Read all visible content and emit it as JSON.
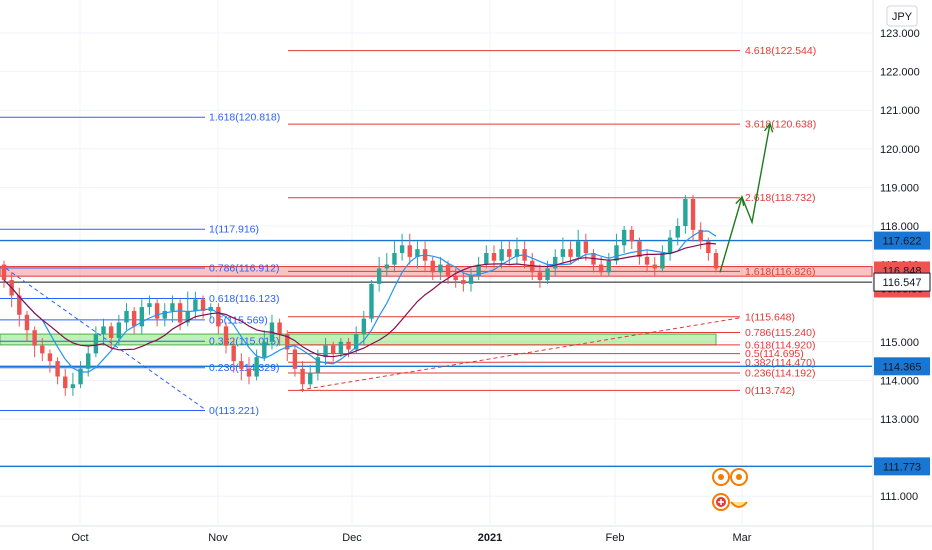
{
  "currency_label": "JPY",
  "colors": {
    "grid": "#f0f3fa",
    "up": "#26a69a",
    "down": "#ef5350",
    "blue_fib": "#2962ff",
    "red_fib": "#e53935",
    "ma_blue": "#2196f3",
    "ma_maroon": "#880e4f",
    "arrow": "#1b7a1b",
    "badge_blue": "#1976d2",
    "badge_dark": "#131722"
  },
  "chart_data": {
    "type": "candlestick",
    "y_axis": {
      "ticks": [
        "123.000",
        "122.000",
        "121.000",
        "120.000",
        "119.000",
        "118.000",
        "117.000",
        "115.000",
        "114.000",
        "113.000",
        "111.000"
      ],
      "range": [
        110.0,
        123.5
      ]
    },
    "x_axis": {
      "ticks": [
        "Oct",
        "Nov",
        "Dec",
        "2021",
        "Feb",
        "Mar"
      ]
    },
    "price_badges": [
      {
        "text": "117.622",
        "value": 117.622,
        "style": "blue"
      },
      {
        "text": "116.848",
        "value": 116.848,
        "style": "red"
      },
      {
        "text": "06:50:39",
        "value": 116.848,
        "style": "red",
        "offset": 1
      },
      {
        "text": "116.547",
        "value": 116.547,
        "style": "plain"
      },
      {
        "text": "114.365",
        "value": 114.365,
        "style": "blue"
      },
      {
        "text": "111.773",
        "value": 111.773,
        "style": "blue"
      }
    ],
    "horizontal_lines": [
      {
        "value": 117.622,
        "color": "blue"
      },
      {
        "value": 116.547,
        "color": "dark"
      },
      {
        "value": 114.365,
        "color": "blue"
      },
      {
        "value": 111.773,
        "color": "blue"
      }
    ],
    "blue_fib": [
      {
        "label": "1.618(120.818)",
        "value": 120.818
      },
      {
        "label": "1(117.916)",
        "value": 117.916
      },
      {
        "label": "0.786(116.912)",
        "value": 116.912
      },
      {
        "label": "0.618(116.123)",
        "value": 116.123
      },
      {
        "label": "0.5(115.569)",
        "value": 115.569
      },
      {
        "label": "0.382(115.015)",
        "value": 115.015
      },
      {
        "label": "0.236(114.329)",
        "value": 114.329
      },
      {
        "label": "0(113.221)",
        "value": 113.221
      }
    ],
    "red_fib_upper": [
      {
        "label": "4.618(122.544)",
        "value": 122.544
      },
      {
        "label": "3.618(120.638)",
        "value": 120.638
      },
      {
        "label": "2.618(118.732)",
        "value": 118.732
      },
      {
        "label": "1.618(116.826)",
        "value": 116.826
      }
    ],
    "red_fib_lower": [
      {
        "label": "1(115.648)",
        "value": 115.648
      },
      {
        "label": "0.786(115.240)",
        "value": 115.24
      },
      {
        "label": "0.618(114.920)",
        "value": 114.92
      },
      {
        "label": "0.5(114.695)",
        "value": 114.695
      },
      {
        "label": "0.382(114.470)",
        "value": 114.47
      },
      {
        "label": "0.236(114.192)",
        "value": 114.192
      },
      {
        "label": "0(113.742)",
        "value": 113.742
      }
    ],
    "zones": [
      {
        "name": "resistance-zone",
        "from": 116.7,
        "to": 116.95,
        "color": "red"
      },
      {
        "name": "support-zone",
        "from": 114.92,
        "to": 115.2,
        "color": "green"
      }
    ],
    "candles": [
      [
        117.0,
        116.6,
        117.1,
        116.4
      ],
      [
        116.6,
        116.2,
        116.8,
        115.9
      ],
      [
        116.2,
        115.7,
        116.4,
        115.4
      ],
      [
        115.7,
        115.3,
        115.8,
        115.0
      ],
      [
        115.3,
        114.9,
        115.4,
        114.6
      ],
      [
        114.9,
        114.7,
        115.1,
        114.5
      ],
      [
        114.7,
        114.5,
        114.8,
        114.2
      ],
      [
        114.5,
        114.1,
        114.6,
        113.9
      ],
      [
        114.1,
        113.8,
        114.3,
        113.6
      ],
      [
        113.8,
        113.9,
        114.2,
        113.6
      ],
      [
        113.9,
        114.3,
        114.5,
        113.8
      ],
      [
        114.3,
        114.7,
        114.9,
        114.1
      ],
      [
        114.7,
        115.2,
        115.4,
        114.6
      ],
      [
        115.2,
        115.4,
        115.6,
        114.9
      ],
      [
        115.4,
        115.1,
        115.5,
        114.8
      ],
      [
        115.1,
        115.5,
        115.7,
        114.9
      ],
      [
        115.5,
        115.8,
        116.0,
        115.3
      ],
      [
        115.8,
        115.4,
        115.9,
        115.2
      ],
      [
        115.4,
        115.9,
        116.1,
        115.2
      ],
      [
        115.9,
        116.0,
        116.2,
        115.7
      ],
      [
        116.0,
        115.6,
        116.1,
        115.4
      ],
      [
        115.6,
        115.8,
        116.0,
        115.4
      ],
      [
        115.8,
        116.0,
        116.2,
        115.5
      ],
      [
        116.0,
        115.5,
        116.1,
        115.3
      ],
      [
        115.5,
        115.8,
        116.3,
        115.4
      ],
      [
        115.8,
        116.1,
        116.3,
        115.6
      ],
      [
        116.1,
        115.8,
        116.2,
        115.6
      ],
      [
        115.8,
        115.9,
        116.0,
        115.6
      ],
      [
        115.9,
        115.4,
        116.0,
        115.2
      ],
      [
        115.4,
        114.9,
        115.5,
        114.7
      ],
      [
        114.9,
        114.5,
        115.1,
        114.2
      ],
      [
        114.5,
        114.3,
        114.7,
        114.0
      ],
      [
        114.3,
        114.1,
        114.6,
        113.9
      ],
      [
        114.1,
        114.6,
        114.8,
        114.0
      ],
      [
        114.6,
        115.0,
        115.3,
        114.5
      ],
      [
        115.0,
        115.5,
        115.7,
        114.8
      ],
      [
        115.5,
        115.2,
        115.6,
        114.9
      ],
      [
        115.2,
        114.8,
        115.3,
        114.5
      ],
      [
        114.8,
        114.3,
        114.9,
        114.1
      ],
      [
        114.3,
        113.9,
        114.5,
        113.7
      ],
      [
        113.9,
        114.2,
        114.4,
        113.8
      ],
      [
        114.2,
        114.6,
        114.8,
        114.0
      ],
      [
        114.6,
        114.9,
        115.1,
        114.4
      ],
      [
        114.9,
        114.7,
        115.0,
        114.5
      ],
      [
        114.7,
        115.0,
        115.1,
        114.6
      ],
      [
        115.0,
        114.8,
        115.1,
        114.6
      ],
      [
        114.8,
        115.2,
        115.4,
        114.7
      ],
      [
        115.2,
        115.6,
        115.8,
        114.9
      ],
      [
        115.6,
        116.5,
        116.6,
        115.5
      ],
      [
        116.5,
        116.9,
        117.2,
        116.3
      ],
      [
        116.9,
        117.0,
        117.3,
        116.7
      ],
      [
        117.0,
        117.3,
        117.6,
        116.8
      ],
      [
        117.3,
        117.5,
        117.8,
        117.1
      ],
      [
        117.5,
        117.2,
        117.8,
        117.0
      ],
      [
        117.2,
        117.4,
        117.6,
        116.9
      ],
      [
        117.4,
        117.1,
        117.6,
        116.8
      ],
      [
        117.1,
        116.8,
        117.2,
        116.6
      ],
      [
        116.8,
        117.0,
        117.2,
        116.6
      ],
      [
        117.0,
        116.7,
        117.1,
        116.5
      ],
      [
        116.7,
        116.6,
        116.9,
        116.4
      ],
      [
        116.6,
        116.5,
        116.8,
        116.3
      ],
      [
        116.5,
        116.7,
        116.9,
        116.3
      ],
      [
        116.7,
        117.0,
        117.2,
        116.6
      ],
      [
        117.0,
        117.3,
        117.5,
        116.9
      ],
      [
        117.3,
        117.1,
        117.5,
        116.9
      ],
      [
        117.1,
        117.4,
        117.6,
        116.9
      ],
      [
        117.4,
        117.2,
        117.6,
        117.0
      ],
      [
        117.2,
        117.4,
        117.7,
        117.0
      ],
      [
        117.4,
        117.1,
        117.6,
        116.9
      ],
      [
        117.1,
        116.8,
        117.3,
        116.6
      ],
      [
        116.8,
        116.6,
        117.0,
        116.4
      ],
      [
        116.6,
        116.9,
        117.1,
        116.5
      ],
      [
        116.9,
        117.2,
        117.4,
        116.7
      ],
      [
        117.2,
        117.4,
        117.7,
        117.0
      ],
      [
        117.4,
        117.2,
        117.6,
        117.0
      ],
      [
        117.2,
        117.6,
        117.9,
        117.1
      ],
      [
        117.6,
        117.3,
        117.8,
        117.1
      ],
      [
        117.3,
        117.0,
        117.4,
        116.8
      ],
      [
        117.0,
        116.8,
        117.2,
        116.7
      ],
      [
        116.8,
        117.1,
        117.3,
        116.7
      ],
      [
        117.1,
        117.5,
        117.8,
        117.0
      ],
      [
        117.5,
        117.9,
        118.0,
        117.3
      ],
      [
        117.9,
        117.6,
        118.0,
        117.4
      ],
      [
        117.6,
        117.2,
        117.7,
        117.0
      ],
      [
        117.2,
        117.0,
        117.4,
        116.8
      ],
      [
        117.0,
        116.9,
        117.2,
        116.7
      ],
      [
        116.9,
        117.3,
        117.5,
        116.8
      ],
      [
        117.3,
        117.7,
        117.9,
        117.1
      ],
      [
        117.7,
        118.0,
        118.2,
        117.5
      ],
      [
        118.0,
        118.7,
        118.8,
        117.8
      ],
      [
        118.7,
        117.9,
        118.8,
        117.6
      ],
      [
        117.9,
        117.6,
        118.1,
        117.4
      ],
      [
        117.6,
        117.3,
        117.7,
        117.1
      ],
      [
        117.3,
        116.9,
        117.4,
        116.8
      ]
    ]
  }
}
